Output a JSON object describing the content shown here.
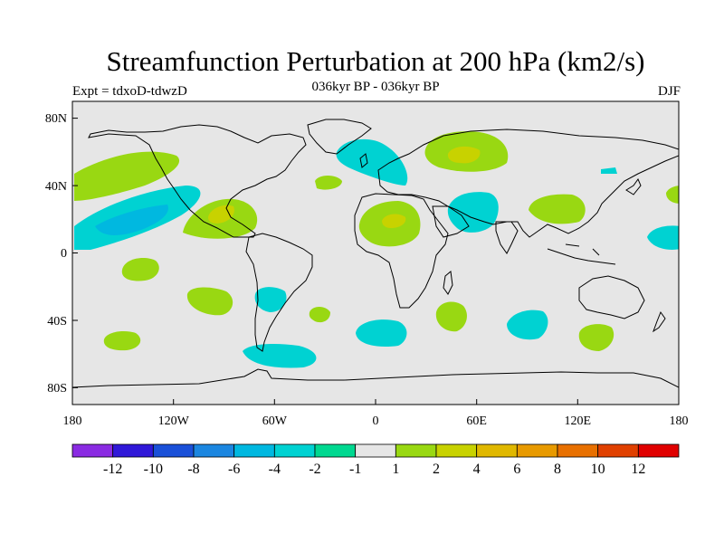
{
  "title": "Streamfunction Perturbation at 200 hPa (km2/s)",
  "subtitle": "036kyr BP - 036kyr BP",
  "left_string": "Expt = tdxoD-tdwzD",
  "right_string": "DJF",
  "colors": {
    "background": "#e6e6e6",
    "levels": [
      "#8a2be2",
      "#3018d8",
      "#1a50d8",
      "#1b86e0",
      "#00b8e0",
      "#00d2d2",
      "#00d890",
      "#e6e6e6",
      "#99d812",
      "#c8d200",
      "#e0b800",
      "#e89a00",
      "#e87000",
      "#e04000",
      "#e00000"
    ]
  },
  "map": {
    "x_ticks": [
      "180",
      "120W",
      "60W",
      "0",
      "60E",
      "120E",
      "180"
    ],
    "y_ticks": [
      "80N",
      "40N",
      "0",
      "40S",
      "80S"
    ]
  },
  "colorbar": {
    "labels": [
      "-12",
      "-10",
      "-8",
      "-6",
      "-4",
      "-2",
      "-1",
      "1",
      "2",
      "4",
      "6",
      "8",
      "10",
      "12"
    ]
  },
  "anomalies": [
    {
      "lon": -155,
      "lat": 46,
      "value": 2
    },
    {
      "lon": -160,
      "lat": 18,
      "value": -4
    },
    {
      "lon": -90,
      "lat": 18,
      "value": 4
    },
    {
      "lon": -30,
      "lat": 64,
      "value": -2
    },
    {
      "lon": 55,
      "lat": 66,
      "value": 4
    },
    {
      "lon": 10,
      "lat": 20,
      "value": 4
    },
    {
      "lon": 55,
      "lat": 22,
      "value": -2
    },
    {
      "lon": 100,
      "lat": 28,
      "value": 2
    },
    {
      "lon": 160,
      "lat": 12,
      "value": -2
    },
    {
      "lon": -150,
      "lat": -8,
      "value": 2
    },
    {
      "lon": -100,
      "lat": -28,
      "value": 2
    },
    {
      "lon": -65,
      "lat": -28,
      "value": -2
    },
    {
      "lon": -35,
      "lat": -35,
      "value": 2
    },
    {
      "lon": 10,
      "lat": -46,
      "value": -2
    },
    {
      "lon": 45,
      "lat": -38,
      "value": 2
    },
    {
      "lon": 95,
      "lat": -42,
      "value": -2
    },
    {
      "lon": 130,
      "lat": -50,
      "value": 2
    },
    {
      "lon": -55,
      "lat": -63,
      "value": -2
    },
    {
      "lon": -150,
      "lat": -50,
      "value": 2
    }
  ]
}
